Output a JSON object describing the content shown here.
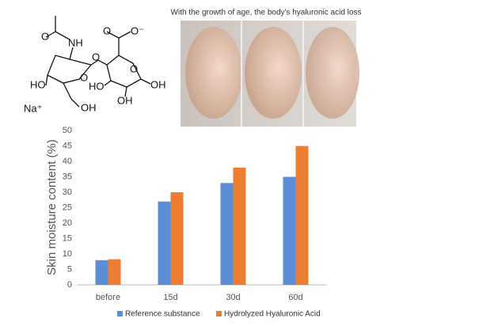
{
  "image_caption": "With the growth of age, the body's hyaluronic acid loss",
  "molecule": {
    "labels": [
      "O",
      "NH",
      "O",
      "O",
      "O",
      "O",
      "O⁻",
      "HO",
      "OH",
      "Na⁺",
      "HO",
      "OH",
      "OH"
    ]
  },
  "chart_data": {
    "type": "bar",
    "y_label": "Skin moisture content (%)",
    "categories": [
      "before",
      "15d",
      "30d",
      "60d"
    ],
    "series": [
      {
        "name": "Reference substance",
        "color": "#5b8ed6",
        "values": [
          8,
          27,
          33,
          35
        ]
      },
      {
        "name": "Hydrolyzed Hyaluronic Acid",
        "color": "#ed7d31",
        "values": [
          8.3,
          30,
          38,
          45
        ]
      }
    ],
    "ylim": [
      0,
      50
    ],
    "yticks": [
      0,
      5,
      10,
      15,
      20,
      25,
      30,
      35,
      40,
      45,
      50
    ],
    "grid": false,
    "legend": "bottom"
  }
}
